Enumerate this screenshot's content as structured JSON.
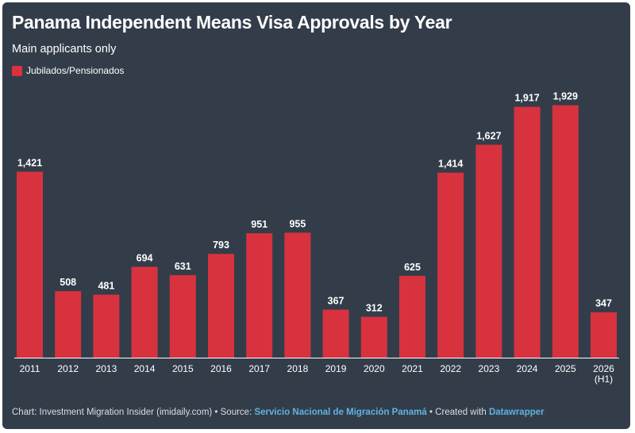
{
  "chart_data": {
    "type": "bar",
    "title": "Panama Independent Means Visa Approvals by Year",
    "subtitle": "Main applicants only",
    "categories": [
      "2011",
      "2012",
      "2013",
      "2014",
      "2015",
      "2016",
      "2017",
      "2018",
      "2019",
      "2020",
      "2021",
      "2022",
      "2023",
      "2024",
      "2025",
      "2026 (H1)"
    ],
    "series": [
      {
        "name": "Jubilados/Pensionados",
        "color": "#d8323f",
        "values": [
          1421,
          508,
          481,
          694,
          631,
          793,
          951,
          955,
          367,
          312,
          625,
          1414,
          1627,
          1917,
          1929,
          347
        ],
        "labels": [
          "1,421",
          "508",
          "481",
          "694",
          "631",
          "793",
          "951",
          "955",
          "367",
          "312",
          "625",
          "1,414",
          "1,627",
          "1,917",
          "1,929",
          "347"
        ]
      }
    ],
    "ylim": [
      0,
      2000
    ],
    "grid": false,
    "legend_position": "top-left"
  },
  "colors": {
    "background": "#333d4a",
    "bar": "#d8323f",
    "text": "#ffffff",
    "link": "#5fb3e0"
  },
  "footer": {
    "prefix": "Chart: Investment Migration Insider (imidaily.com) • Source: ",
    "source_link": "Servicio Nacional de Migración Panamá",
    "middle": " • Created with ",
    "tool_link": "Datawrapper"
  }
}
